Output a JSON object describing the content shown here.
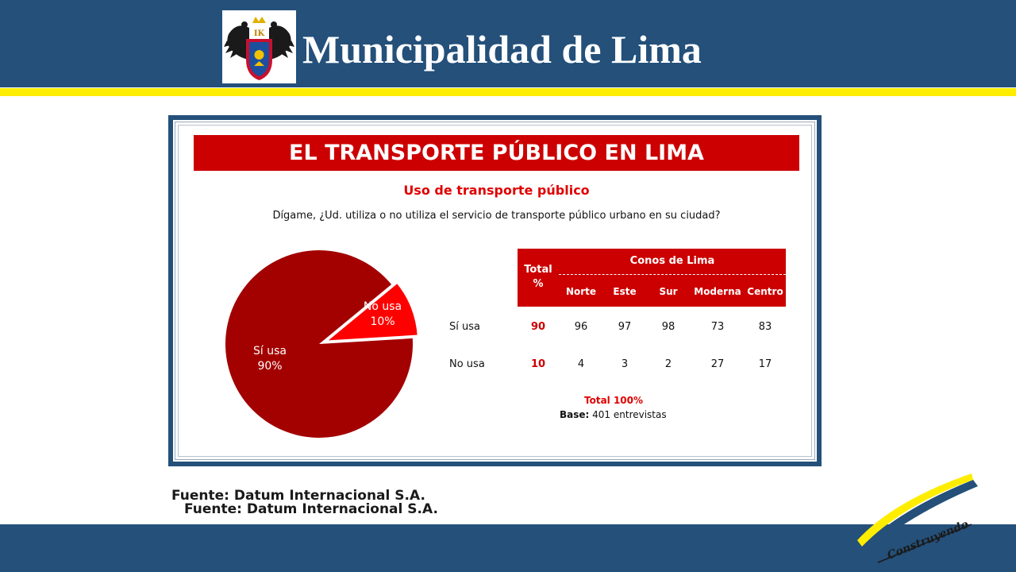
{
  "header": {
    "title": "Municipalidad de Lima",
    "crest_icon": "lima-coat-of-arms-icon",
    "crest_text": "IK"
  },
  "colors": {
    "header_blue": "#24507a",
    "accent_yellow": "#ffed00",
    "chart_red": "#cc0000",
    "pie_dark": "#a30000",
    "pie_bright": "#ff0000"
  },
  "chart_data": {
    "type": "pie",
    "title": "EL TRANSPORTE PÚBLICO EN LIMA",
    "subtitle": "Uso de transporte público",
    "question": "Dígame, ¿Ud. utiliza o no utiliza el servicio de transporte público urbano en su ciudad?",
    "slices": [
      {
        "label": "Sí usa",
        "value": 90,
        "display": "90%"
      },
      {
        "label": "No usa",
        "value": 10,
        "display": "10%"
      }
    ],
    "table": {
      "header_total": "Total",
      "header_total_unit": "%",
      "group_header": "Conos de Lima",
      "columns": [
        "Norte",
        "Este",
        "Sur",
        "Moderna",
        "Centro"
      ],
      "rows": [
        {
          "label": "Sí usa",
          "total": 90,
          "values": [
            96,
            97,
            98,
            73,
            83
          ]
        },
        {
          "label": "No usa",
          "total": 10,
          "values": [
            4,
            3,
            2,
            27,
            17
          ]
        }
      ]
    },
    "footer_total": "Total 100%",
    "base_label": "Base:",
    "base_value": "401 entrevistas"
  },
  "source": {
    "line1": "Fuente: Datum Internacional S.A.",
    "line2": "Fuente: Datum Internacional S.A."
  },
  "footer": {
    "logo_icon": "construyendo-swoosh-logo-icon",
    "logo_text": "Construyendo"
  }
}
